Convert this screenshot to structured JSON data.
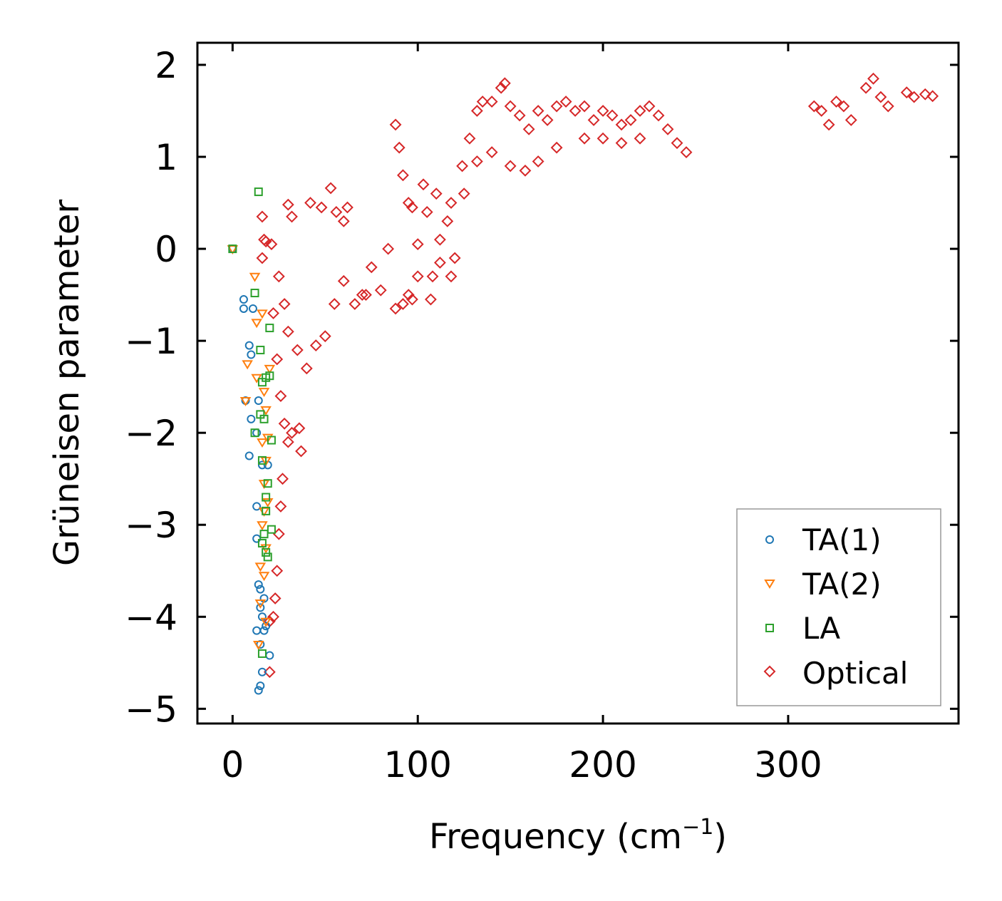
{
  "chart_data": {
    "type": "scatter",
    "title": "",
    "xlabel": "Frequency (cm",
    "xlabel_sup": "−1",
    "xlabel_close": ")",
    "ylabel": "Grüneisen parameter",
    "xlim": [
      -19,
      392
    ],
    "ylim": [
      -5.16,
      2.24
    ],
    "xticks": [
      0,
      100,
      200,
      300
    ],
    "xtick_labels": [
      "0",
      "100",
      "200",
      "300"
    ],
    "yticks": [
      2,
      1,
      0,
      -1,
      -2,
      -3,
      -4,
      -5
    ],
    "ytick_labels": [
      "2",
      "1",
      "0",
      "−1",
      "−2",
      "−3",
      "−4",
      "−5"
    ],
    "grid": false,
    "legend": {
      "position": "lower-right",
      "entries": [
        "TA(1)",
        "TA(2)",
        "LA",
        "Optical"
      ]
    },
    "series": [
      {
        "name": "TA(1)",
        "marker": "circle",
        "color": "#1f77b4",
        "points": [
          [
            0,
            0
          ],
          [
            6,
            -0.55
          ],
          [
            6,
            -0.65
          ],
          [
            9,
            -1.05
          ],
          [
            10,
            -1.15
          ],
          [
            11,
            -0.65
          ],
          [
            7,
            -1.65
          ],
          [
            10,
            -1.85
          ],
          [
            13,
            -2.0
          ],
          [
            9,
            -2.25
          ],
          [
            13,
            -2.8
          ],
          [
            13,
            -3.15
          ],
          [
            14,
            -3.65
          ],
          [
            15,
            -3.7
          ],
          [
            16,
            -4.0
          ],
          [
            13,
            -4.15
          ],
          [
            15,
            -4.3
          ],
          [
            17,
            -4.15
          ],
          [
            15,
            -4.75
          ],
          [
            14,
            -4.8
          ],
          [
            20,
            -4.42
          ],
          [
            14,
            -1.65
          ],
          [
            16,
            -2.35
          ],
          [
            19,
            -2.35
          ],
          [
            17,
            -3.8
          ],
          [
            18,
            -4.1
          ],
          [
            16,
            -4.6
          ],
          [
            15,
            -3.9
          ]
        ]
      },
      {
        "name": "TA(2)",
        "marker": "triangle-down",
        "color": "#ff7f0e",
        "points": [
          [
            0,
            0
          ],
          [
            12,
            -0.3
          ],
          [
            16,
            -0.7
          ],
          [
            13,
            -0.8
          ],
          [
            8,
            -1.25
          ],
          [
            13,
            -1.4
          ],
          [
            17,
            -1.55
          ],
          [
            7,
            -1.65
          ],
          [
            18,
            -1.75
          ],
          [
            16,
            -2.1
          ],
          [
            18,
            -2.3
          ],
          [
            17,
            -2.55
          ],
          [
            19,
            -2.75
          ],
          [
            16,
            -3.0
          ],
          [
            15,
            -3.45
          ],
          [
            17,
            -3.55
          ],
          [
            15,
            -3.85
          ],
          [
            18,
            -4.05
          ],
          [
            14,
            -4.3
          ],
          [
            20,
            -1.3
          ],
          [
            19,
            -2.05
          ],
          [
            17,
            -2.85
          ],
          [
            18,
            -3.25
          ]
        ]
      },
      {
        "name": "LA",
        "marker": "square",
        "color": "#2ca02c",
        "points": [
          [
            0,
            0
          ],
          [
            14,
            0.62
          ],
          [
            12,
            -0.48
          ],
          [
            20,
            -0.86
          ],
          [
            15,
            -1.1
          ],
          [
            18,
            -1.4
          ],
          [
            20,
            -1.38
          ],
          [
            16,
            -1.45
          ],
          [
            12,
            -2.0
          ],
          [
            17,
            -1.85
          ],
          [
            21,
            -2.08
          ],
          [
            16,
            -2.3
          ],
          [
            19,
            -2.55
          ],
          [
            18,
            -2.85
          ],
          [
            17,
            -3.1
          ],
          [
            21,
            -3.05
          ],
          [
            18,
            -3.3
          ],
          [
            19,
            -3.35
          ],
          [
            16,
            -4.4
          ],
          [
            15,
            -1.8
          ],
          [
            18,
            -2.7
          ],
          [
            16,
            -3.2
          ]
        ]
      },
      {
        "name": "Optical",
        "marker": "diamond",
        "color": "#d62728",
        "points": [
          [
            16,
            0.35
          ],
          [
            17,
            0.1
          ],
          [
            18,
            0.08
          ],
          [
            16,
            -0.1
          ],
          [
            21,
            0.05
          ],
          [
            30,
            0.48
          ],
          [
            32,
            0.35
          ],
          [
            42,
            0.5
          ],
          [
            53,
            0.66
          ],
          [
            48,
            0.45
          ],
          [
            56,
            0.4
          ],
          [
            60,
            0.3
          ],
          [
            25,
            -0.3
          ],
          [
            28,
            -0.6
          ],
          [
            30,
            -0.9
          ],
          [
            35,
            -1.1
          ],
          [
            40,
            -1.3
          ],
          [
            45,
            -1.05
          ],
          [
            50,
            -0.95
          ],
          [
            55,
            -0.6
          ],
          [
            60,
            -0.35
          ],
          [
            22,
            -0.7
          ],
          [
            24,
            -1.2
          ],
          [
            26,
            -1.6
          ],
          [
            28,
            -1.9
          ],
          [
            30,
            -2.1
          ],
          [
            32,
            -2.0
          ],
          [
            36,
            -1.95
          ],
          [
            37,
            -2.2
          ],
          [
            27,
            -2.5
          ],
          [
            26,
            -2.8
          ],
          [
            25,
            -3.1
          ],
          [
            24,
            -3.5
          ],
          [
            23,
            -3.8
          ],
          [
            22,
            -4.0
          ],
          [
            20,
            -4.6
          ],
          [
            20,
            -4.05
          ],
          [
            70,
            -0.5
          ],
          [
            75,
            -0.2
          ],
          [
            80,
            -0.45
          ],
          [
            88,
            -0.65
          ],
          [
            92,
            -0.6
          ],
          [
            95,
            -0.5
          ],
          [
            88,
            1.35
          ],
          [
            90,
            1.1
          ],
          [
            92,
            0.8
          ],
          [
            95,
            0.5
          ],
          [
            97,
            0.45
          ],
          [
            100,
            0.05
          ],
          [
            105,
            0.4
          ],
          [
            110,
            0.6
          ],
          [
            112,
            0.1
          ],
          [
            108,
            -0.3
          ],
          [
            100,
            -0.3
          ],
          [
            118,
            0.5
          ],
          [
            116,
            0.3
          ],
          [
            112,
            -0.15
          ],
          [
            120,
            -0.1
          ],
          [
            124,
            0.9
          ],
          [
            128,
            1.2
          ],
          [
            132,
            1.5
          ],
          [
            140,
            1.6
          ],
          [
            145,
            1.75
          ],
          [
            150,
            1.55
          ],
          [
            155,
            1.45
          ],
          [
            160,
            1.3
          ],
          [
            165,
            1.5
          ],
          [
            170,
            1.4
          ],
          [
            175,
            1.55
          ],
          [
            180,
            1.6
          ],
          [
            185,
            1.5
          ],
          [
            190,
            1.55
          ],
          [
            195,
            1.4
          ],
          [
            200,
            1.5
          ],
          [
            205,
            1.45
          ],
          [
            210,
            1.35
          ],
          [
            215,
            1.4
          ],
          [
            220,
            1.5
          ],
          [
            225,
            1.55
          ],
          [
            230,
            1.45
          ],
          [
            235,
            1.3
          ],
          [
            240,
            1.15
          ],
          [
            245,
            1.05
          ],
          [
            132,
            0.95
          ],
          [
            140,
            1.05
          ],
          [
            150,
            0.9
          ],
          [
            158,
            0.85
          ],
          [
            165,
            0.95
          ],
          [
            175,
            1.1
          ],
          [
            190,
            1.2
          ],
          [
            200,
            1.2
          ],
          [
            210,
            1.15
          ],
          [
            220,
            1.2
          ],
          [
            314,
            1.55
          ],
          [
            318,
            1.5
          ],
          [
            322,
            1.35
          ],
          [
            326,
            1.6
          ],
          [
            330,
            1.55
          ],
          [
            334,
            1.4
          ],
          [
            342,
            1.75
          ],
          [
            346,
            1.85
          ],
          [
            350,
            1.65
          ],
          [
            354,
            1.55
          ],
          [
            364,
            1.7
          ],
          [
            368,
            1.65
          ],
          [
            374,
            1.68
          ],
          [
            378,
            1.66
          ],
          [
            62,
            0.45
          ],
          [
            66,
            -0.6
          ],
          [
            72,
            -0.5
          ],
          [
            84,
            0.0
          ],
          [
            97,
            -0.55
          ],
          [
            103,
            0.7
          ],
          [
            107,
            -0.55
          ],
          [
            118,
            -0.3
          ],
          [
            125,
            0.6
          ],
          [
            135,
            1.6
          ],
          [
            147,
            1.8
          ]
        ]
      }
    ]
  }
}
